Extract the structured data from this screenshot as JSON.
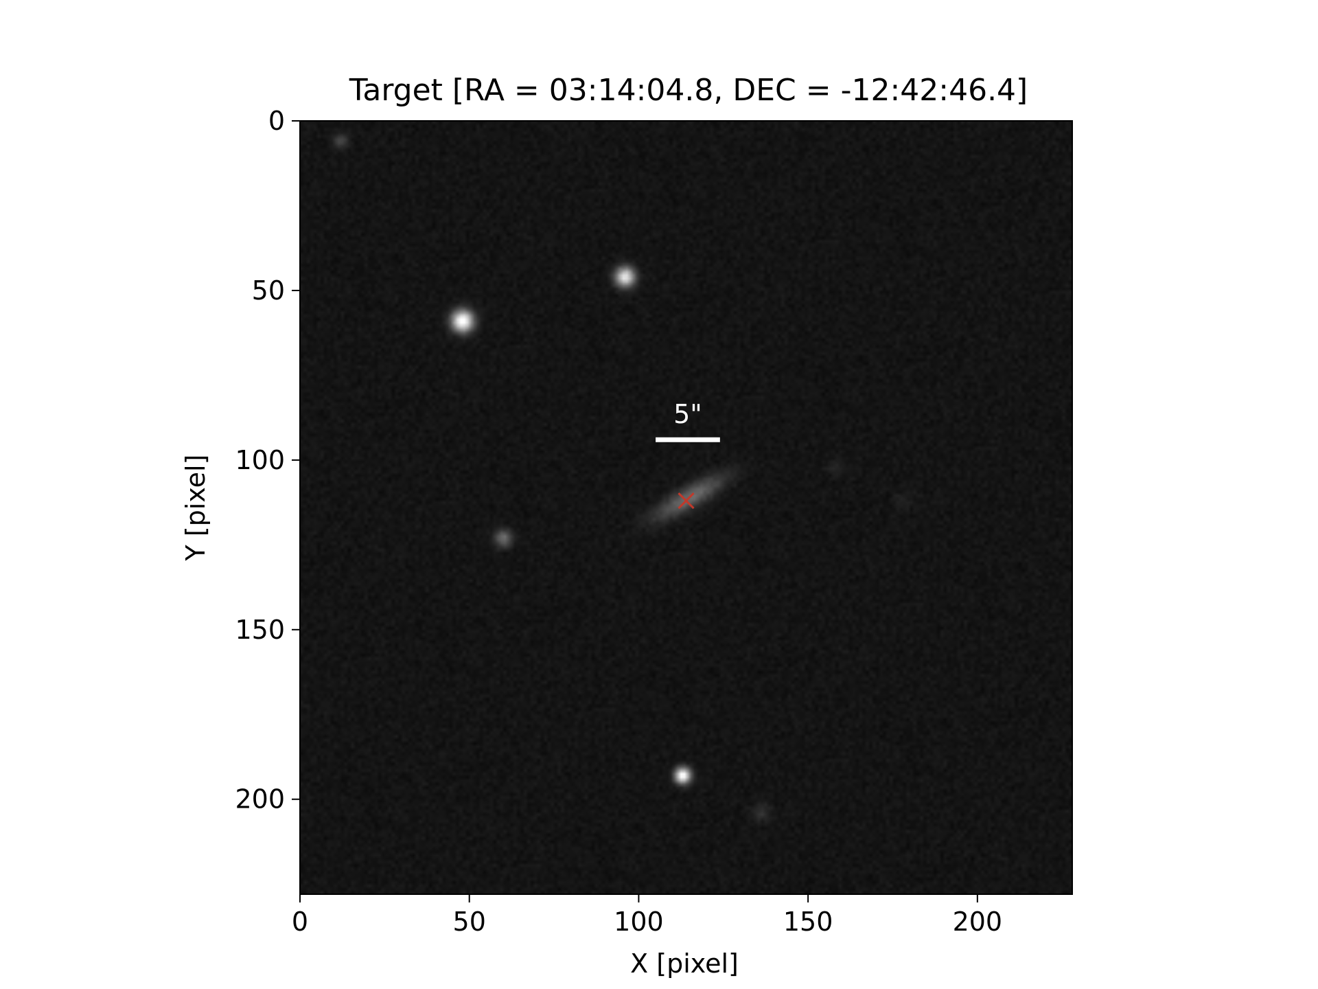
{
  "figure": {
    "title": "Target [RA = 03:14:04.8, DEC = -12:42:46.4]",
    "xlabel": "X [pixel]",
    "ylabel": "Y [pixel]",
    "scalebar_label": "5\"",
    "colors": {
      "background": "#ffffff",
      "image_background": "#151515",
      "axis": "#000000",
      "scalebar": "#ffffff",
      "marker": "#c0392b"
    }
  },
  "image": {
    "x_range": [
      0,
      228
    ],
    "y_range": [
      0,
      228
    ],
    "y_axis_inverted": true,
    "x_ticks": [
      0,
      50,
      100,
      150,
      200
    ],
    "y_ticks": [
      0,
      50,
      100,
      150,
      200
    ],
    "colormap": "gray"
  },
  "sources": [
    {
      "name": "star-1",
      "x": 48,
      "y": 59,
      "peak": 1.0,
      "sigma": 2.2
    },
    {
      "name": "star-2",
      "x": 96,
      "y": 46,
      "peak": 0.85,
      "sigma": 2.0
    },
    {
      "name": "star-3",
      "x": 113,
      "y": 193,
      "peak": 1.0,
      "sigma": 1.6
    },
    {
      "name": "star-4",
      "x": 60,
      "y": 123,
      "peak": 0.35,
      "sigma": 1.8
    },
    {
      "name": "star-5",
      "x": 12,
      "y": 6,
      "peak": 0.18,
      "sigma": 1.6
    },
    {
      "name": "star-6",
      "x": 136,
      "y": 204,
      "peak": 0.12,
      "sigma": 1.8
    },
    {
      "name": "star-7",
      "x": 158,
      "y": 102,
      "peak": 0.08,
      "sigma": 1.6
    },
    {
      "name": "star-8",
      "x": 178,
      "y": 112,
      "peak": 0.06,
      "sigma": 1.8
    },
    {
      "name": "target-galaxy",
      "x": 115,
      "y": 111,
      "peak": 0.35,
      "sigma_major": 8.0,
      "sigma_minor": 2.2,
      "angle_deg": -30
    }
  ],
  "target_marker": {
    "x": 114,
    "y": 112,
    "symbol": "x"
  },
  "scalebar": {
    "x_start": 105,
    "x_end": 124,
    "y": 94
  }
}
